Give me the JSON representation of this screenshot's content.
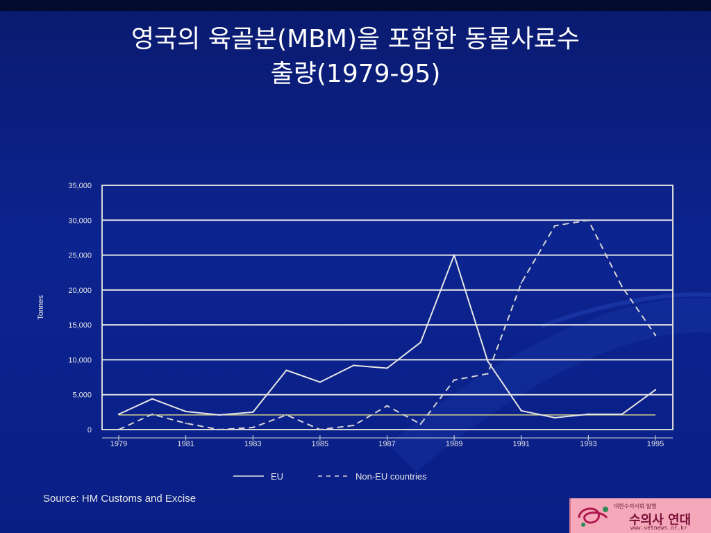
{
  "slide": {
    "title_line1": "영국의 육골분(MBM)을 포함한 동물사료수",
    "title_line2": "출량(1979-95)",
    "source": "Source: HM Customs and Excise"
  },
  "logo": {
    "top_text": "대한수의사회 발행",
    "main_text": "수의사 연대",
    "url": "www.vetnews.or.kr",
    "accent_color": "#7a0f3a"
  },
  "chart_data": {
    "type": "line",
    "x": [
      1979,
      1980,
      1981,
      1982,
      1983,
      1984,
      1985,
      1986,
      1987,
      1988,
      1989,
      1990,
      1991,
      1992,
      1993,
      1994,
      1995
    ],
    "x_tick_labels": [
      "1979",
      "1981",
      "1983",
      "1985",
      "1987",
      "1989",
      "1991",
      "1993",
      "1995"
    ],
    "ylabel": "Tonnes",
    "ylim": [
      0,
      35000
    ],
    "y_ticks": [
      0,
      5000,
      10000,
      15000,
      20000,
      25000,
      30000,
      35000
    ],
    "y_tick_labels": [
      "0",
      "5,000",
      "10,000",
      "15,000",
      "20,000",
      "25,000",
      "30,000",
      "35,000"
    ],
    "grid": true,
    "legend_placement": "bottom",
    "series": [
      {
        "name": "EU",
        "style": "solid",
        "color": "#e6e6e6",
        "values": [
          2200,
          4400,
          2600,
          2100,
          2500,
          8500,
          6800,
          9200,
          8800,
          12500,
          25000,
          9800,
          2700,
          1700,
          2200,
          2200,
          5700
        ]
      },
      {
        "name": "Non-EU countries",
        "style": "dashed",
        "color": "#d6d6d6",
        "values": [
          0,
          2200,
          900,
          0,
          300,
          2100,
          0,
          600,
          3400,
          800,
          7100,
          8000,
          21000,
          29200,
          30000,
          20500,
          13500
        ]
      }
    ],
    "reference_line": {
      "value": 2100,
      "color": "#cfcf8f"
    }
  }
}
